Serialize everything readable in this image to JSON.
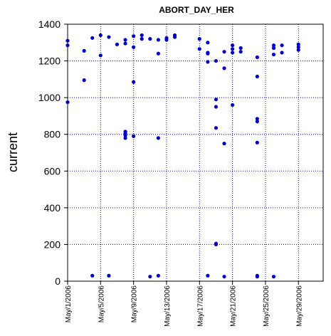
{
  "chart_data": {
    "type": "scatter",
    "title": "ABORT_DAY_HER",
    "xlabel": "",
    "ylabel": "current",
    "x_type": "date",
    "xlim": [
      "2006-05-01",
      "2006-06-01"
    ],
    "ylim": [
      0,
      1400
    ],
    "yticks": [
      0,
      200,
      400,
      600,
      800,
      1000,
      1200,
      1400
    ],
    "xticks": [
      "2006-05-01",
      "2006-05-05",
      "2006-05-09",
      "2006-05-13",
      "2006-05-17",
      "2006-05-21",
      "2006-05-25",
      "2006-05-29"
    ],
    "xtick_labels": [
      "May/1/2006",
      "May/5/2006",
      "May/9/2006",
      "May/13/2006",
      "May/17/2006",
      "May/21/2006",
      "May/25/2006",
      "May/29/2006"
    ],
    "grid": true,
    "marker_color": "#0000cc",
    "series": [
      {
        "points": [
          [
            "2006-05-01",
            975
          ],
          [
            "2006-05-01",
            1285
          ],
          [
            "2006-05-01",
            1310
          ],
          [
            "2006-05-03",
            1095
          ],
          [
            "2006-05-03",
            1255
          ],
          [
            "2006-05-04",
            30
          ],
          [
            "2006-05-04",
            1325
          ],
          [
            "2006-05-05",
            1230
          ],
          [
            "2006-05-05",
            1340
          ],
          [
            "2006-05-06",
            30
          ],
          [
            "2006-05-06",
            1330
          ],
          [
            "2006-05-07",
            1290
          ],
          [
            "2006-05-08",
            780
          ],
          [
            "2006-05-08",
            795
          ],
          [
            "2006-05-08",
            805
          ],
          [
            "2006-05-08",
            815
          ],
          [
            "2006-05-08",
            1295
          ],
          [
            "2006-05-08",
            1315
          ],
          [
            "2006-05-09",
            790
          ],
          [
            "2006-05-09",
            1085
          ],
          [
            "2006-05-09",
            1275
          ],
          [
            "2006-05-09",
            1335
          ],
          [
            "2006-05-10",
            1320
          ],
          [
            "2006-05-10",
            1340
          ],
          [
            "2006-05-11",
            25
          ],
          [
            "2006-05-11",
            1320
          ],
          [
            "2006-05-12",
            30
          ],
          [
            "2006-05-12",
            780
          ],
          [
            "2006-05-12",
            1240
          ],
          [
            "2006-05-12",
            1315
          ],
          [
            "2006-05-13",
            1315
          ],
          [
            "2006-05-13",
            1325
          ],
          [
            "2006-05-14",
            1330
          ],
          [
            "2006-05-14",
            1340
          ],
          [
            "2006-05-17",
            1265
          ],
          [
            "2006-05-17",
            1320
          ],
          [
            "2006-05-18",
            30
          ],
          [
            "2006-05-18",
            1195
          ],
          [
            "2006-05-18",
            1240
          ],
          [
            "2006-05-18",
            1245
          ],
          [
            "2006-05-18",
            1300
          ],
          [
            "2006-05-19",
            200
          ],
          [
            "2006-05-19",
            205
          ],
          [
            "2006-05-19",
            835
          ],
          [
            "2006-05-19",
            950
          ],
          [
            "2006-05-19",
            990
          ],
          [
            "2006-05-19",
            1200
          ],
          [
            "2006-05-20",
            25
          ],
          [
            "2006-05-20",
            750
          ],
          [
            "2006-05-20",
            1160
          ],
          [
            "2006-05-20",
            1250
          ],
          [
            "2006-05-21",
            960
          ],
          [
            "2006-05-21",
            1245
          ],
          [
            "2006-05-21",
            1265
          ],
          [
            "2006-05-21",
            1285
          ],
          [
            "2006-05-22",
            1250
          ],
          [
            "2006-05-22",
            1270
          ],
          [
            "2006-05-24",
            25
          ],
          [
            "2006-05-24",
            30
          ],
          [
            "2006-05-24",
            755
          ],
          [
            "2006-05-24",
            870
          ],
          [
            "2006-05-24",
            885
          ],
          [
            "2006-05-24",
            1115
          ],
          [
            "2006-05-24",
            1220
          ],
          [
            "2006-05-26",
            25
          ],
          [
            "2006-05-26",
            1235
          ],
          [
            "2006-05-26",
            1270
          ],
          [
            "2006-05-26",
            1285
          ],
          [
            "2006-05-27",
            1245
          ],
          [
            "2006-05-27",
            1285
          ],
          [
            "2006-05-29",
            1260
          ],
          [
            "2006-05-29",
            1275
          ],
          [
            "2006-05-29",
            1290
          ]
        ]
      }
    ]
  }
}
